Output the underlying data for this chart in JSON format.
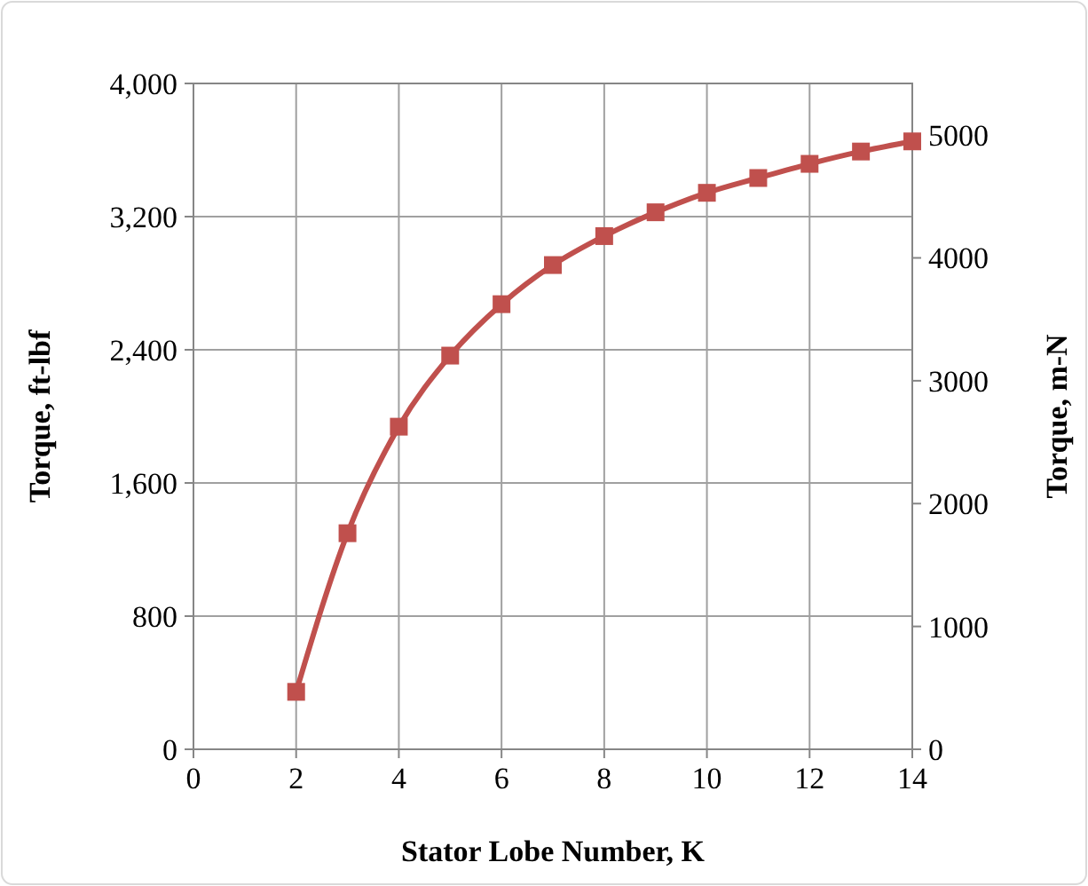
{
  "chart_data": {
    "type": "line",
    "xlabel": "Stator Lobe Number, K",
    "ylabel": "Torque, ft-lbf",
    "y2label": "Torque, m-N",
    "x": [
      2,
      3,
      4,
      5,
      6,
      7,
      8,
      9,
      10,
      11,
      12,
      13,
      14
    ],
    "series": [
      {
        "color": "#c0504d",
        "values": [
          345,
          1298,
          1938,
          2365,
          2674,
          2909,
          3083,
          3226,
          3343,
          3432,
          3517,
          3591,
          3652
        ]
      }
    ],
    "xlim": [
      0,
      14
    ],
    "xticks": [
      0,
      2,
      4,
      6,
      8,
      10,
      12,
      14
    ],
    "ylim": [
      0,
      4000
    ],
    "yticks": [
      0,
      {
        "value": 800,
        "label": "800"
      },
      {
        "value": 1600,
        "label": "1,600"
      },
      {
        "value": 2400,
        "label": "2,400"
      },
      {
        "value": 3200,
        "label": "3,200"
      },
      {
        "value": 4000,
        "label": "4,000"
      }
    ],
    "y2lim": [
      0,
      5420
    ],
    "y2ticks": [
      0,
      1000,
      2000,
      3000,
      4000,
      5000
    ],
    "grid": true,
    "marker": "square",
    "line_style": "solid"
  }
}
